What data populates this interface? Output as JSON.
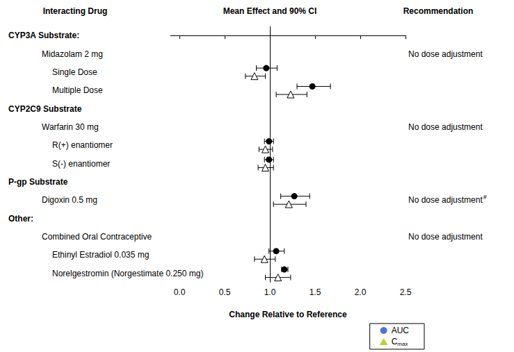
{
  "chart_data": {
    "type": "forest",
    "columns": [
      "Interacting Drug",
      "Mean Effect and 90% CI",
      "Recommendation"
    ],
    "x_label": "Change Relative to Reference",
    "xlim": [
      -0.1,
      2.5
    ],
    "xticks": [
      {
        "value": 0,
        "label": "0.0"
      },
      0.5,
      {
        "value": 1,
        "label": "1.0"
      },
      1.5,
      {
        "value": 2,
        "label": "2.0"
      },
      2.5
    ],
    "reference_line": 1,
    "grid": false,
    "legend": "bottom right",
    "series": [
      {
        "name": "AUC",
        "marker": "circle",
        "color": "#000000"
      },
      {
        "name": "C",
        "subscript": "max",
        "marker": "triangle-open",
        "color": "#000000"
      }
    ],
    "groups": [
      {
        "name": "CYP3A Substrate:",
        "recommendation": "No dose adjustment",
        "drugs": [
          {
            "name": "Midazolam 2 mg",
            "rows": [
              {
                "name": "Single Dose",
                "values": [
                  {
                    "mean": 0.96,
                    "ci": [
                      0.85,
                      1.08
                    ]
                  },
                  {
                    "mean": 0.83,
                    "ci": [
                      0.73,
                      0.95
                    ]
                  }
                ]
              },
              {
                "name": "Multiple Dose",
                "values": [
                  {
                    "mean": 1.47,
                    "ci": [
                      1.3,
                      1.67
                    ]
                  },
                  {
                    "mean": 1.23,
                    "ci": [
                      1.07,
                      1.41
                    ]
                  }
                ]
              }
            ]
          }
        ]
      },
      {
        "name": "CYP2C9 Substrate",
        "recommendation": "No dose adjustment",
        "drugs": [
          {
            "name": "Warfarin 30 mg",
            "rows": [
              {
                "name": "R(+) enantiomer",
                "values": [
                  {
                    "mean": 0.99,
                    "ci": [
                      0.94,
                      1.04
                    ]
                  },
                  {
                    "mean": 0.95,
                    "ci": [
                      0.88,
                      1.03
                    ]
                  }
                ]
              },
              {
                "name": "S(-) enantiomer",
                "values": [
                  {
                    "mean": 0.99,
                    "ci": [
                      0.94,
                      1.04
                    ]
                  },
                  {
                    "mean": 0.95,
                    "ci": [
                      0.87,
                      1.04
                    ]
                  }
                ]
              }
            ]
          }
        ]
      },
      {
        "name": "P-gp Substrate",
        "recommendation": "No dose adjustment",
        "recommendation_mark": "#",
        "drugs": [
          {
            "name": "Digoxin 0.5 mg",
            "values": [
              {
                "mean": 1.27,
                "ci": [
                  1.12,
                  1.44
                ]
              },
              {
                "mean": 1.21,
                "ci": [
                  1.04,
                  1.4
                ]
              }
            ]
          }
        ]
      },
      {
        "name": "Other:",
        "recommendation": "No dose adjustment",
        "drugs": [
          {
            "name": "Combined Oral Contraceptive",
            "rows": [
              {
                "name": "Ethinyl Estradiol 0.035 mg",
                "values": [
                  {
                    "mean": 1.07,
                    "ci": [
                      0.99,
                      1.16
                    ]
                  },
                  {
                    "mean": 0.94,
                    "ci": [
                      0.83,
                      1.06
                    ]
                  }
                ]
              },
              {
                "name": "Norelgestromin (Norgestimate 0.250 mg)",
                "values": [
                  {
                    "mean": 1.16,
                    "ci": [
                      1.13,
                      1.2
                    ]
                  },
                  {
                    "mean": 1.09,
                    "ci": [
                      0.95,
                      1.23
                    ]
                  }
                ]
              }
            ]
          }
        ]
      }
    ]
  }
}
